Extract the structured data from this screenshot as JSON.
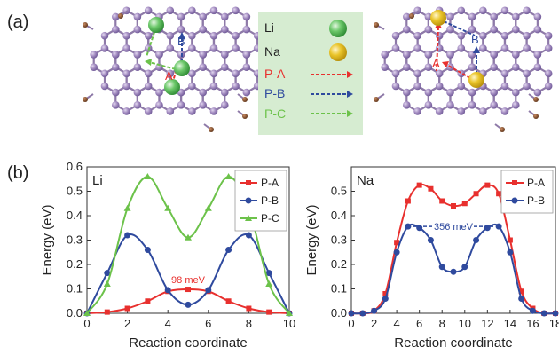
{
  "panel_labels": {
    "a": "(a)",
    "b": "(b)"
  },
  "legend_box": {
    "li": "Li",
    "na": "Na",
    "pa": "P-A",
    "pb": "P-B",
    "pc": "P-C"
  },
  "structure_labels": {
    "left_A": "A",
    "left_B": "B",
    "right_A": "A",
    "right_B": "B"
  },
  "colors": {
    "atom": "#9d86b8",
    "atom_edge": "#6a5590",
    "bond": "#8e7aa8",
    "h_atom": "#7a4a2b",
    "li": "#5fbf5f",
    "na": "#e7c12a",
    "red": "#e8302e",
    "blue": "#2f4a9e",
    "green": "#6cc24a",
    "legend_bg": "#d6ecd1"
  },
  "chart_data": [
    {
      "type": "line",
      "panel_text": "Li",
      "xlabel": "Reaction coordinate",
      "ylabel": "Energy (eV)",
      "xlim": [
        0,
        10
      ],
      "ylim": [
        0,
        0.6
      ],
      "xticks": [
        0,
        2,
        4,
        6,
        8,
        10
      ],
      "yticks": [
        0.0,
        0.1,
        0.2,
        0.3,
        0.4,
        0.5,
        0.6
      ],
      "annotation": "98 meV",
      "series": [
        {
          "name": "P-A",
          "color": "#e8302e",
          "marker": "square",
          "x": [
            0,
            1,
            2,
            3,
            4,
            5,
            6,
            7,
            8,
            9,
            10
          ],
          "y": [
            0.0,
            0.005,
            0.02,
            0.05,
            0.09,
            0.098,
            0.09,
            0.05,
            0.02,
            0.005,
            0.0
          ]
        },
        {
          "name": "P-B",
          "color": "#2f4a9e",
          "marker": "circle",
          "x": [
            0,
            1,
            2,
            3,
            4,
            5,
            6,
            7,
            8,
            9,
            10
          ],
          "y": [
            0.0,
            0.165,
            0.32,
            0.26,
            0.095,
            0.035,
            0.095,
            0.26,
            0.32,
            0.165,
            0.0
          ]
        },
        {
          "name": "P-C",
          "color": "#6cc24a",
          "marker": "triangle",
          "x": [
            0,
            1,
            2,
            3,
            4,
            5,
            6,
            7,
            8,
            9,
            10
          ],
          "y": [
            0.0,
            0.12,
            0.43,
            0.56,
            0.43,
            0.31,
            0.43,
            0.56,
            0.43,
            0.12,
            0.0
          ]
        }
      ],
      "legend": "top-right"
    },
    {
      "type": "line",
      "panel_text": "Na",
      "xlabel": "Reaction coordinate",
      "ylabel": "Energy (eV)",
      "xlim": [
        0,
        18
      ],
      "ylim": [
        0,
        0.6
      ],
      "xticks": [
        0,
        2,
        4,
        6,
        8,
        10,
        12,
        14,
        16,
        18
      ],
      "yticks": [
        0.0,
        0.1,
        0.2,
        0.3,
        0.4,
        0.5
      ],
      "annotation": "356 meV",
      "series": [
        {
          "name": "P-A",
          "color": "#e8302e",
          "marker": "square",
          "x": [
            0,
            1,
            2,
            3,
            4,
            5,
            6,
            7,
            8,
            9,
            10,
            11,
            12,
            13,
            14,
            15,
            16,
            17,
            18
          ],
          "y": [
            0.0,
            0.0,
            0.01,
            0.08,
            0.29,
            0.46,
            0.525,
            0.51,
            0.46,
            0.44,
            0.45,
            0.49,
            0.525,
            0.49,
            0.3,
            0.09,
            0.02,
            0.0,
            0.0
          ]
        },
        {
          "name": "P-B",
          "color": "#2f4a9e",
          "marker": "circle",
          "x": [
            0,
            1,
            2,
            3,
            4,
            5,
            6,
            7,
            8,
            9,
            10,
            11,
            12,
            13,
            14,
            15,
            16,
            17,
            18
          ],
          "y": [
            0.0,
            0.0,
            0.01,
            0.06,
            0.25,
            0.356,
            0.35,
            0.3,
            0.19,
            0.17,
            0.19,
            0.3,
            0.35,
            0.356,
            0.25,
            0.06,
            0.01,
            0.0,
            0.0
          ]
        }
      ],
      "legend": "top-right"
    }
  ]
}
